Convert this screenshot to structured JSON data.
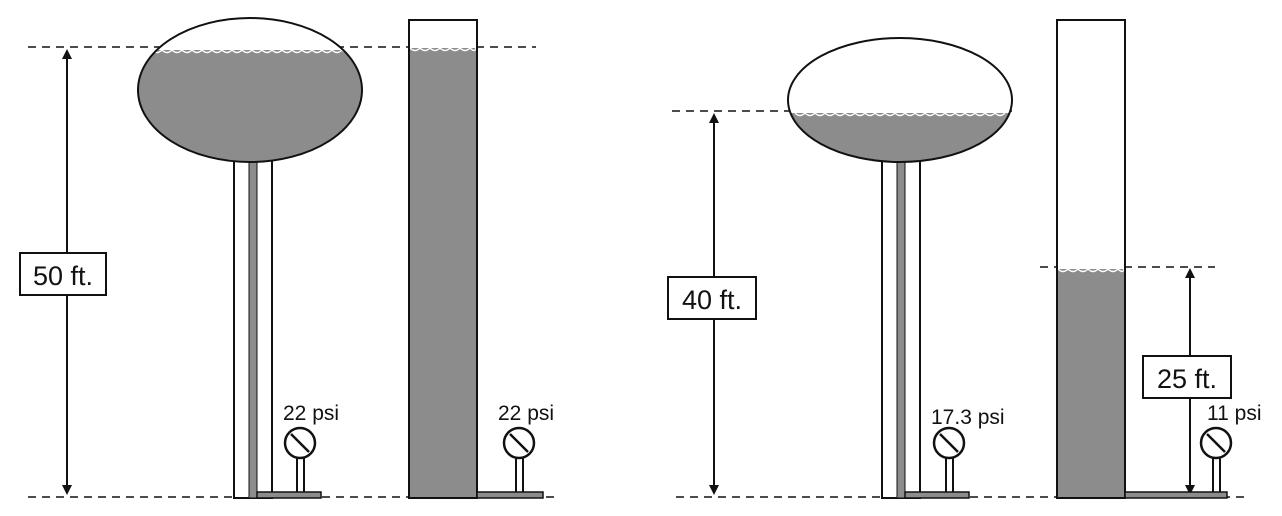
{
  "diagram": {
    "left_panel": {
      "height_label": "50 ft.",
      "tower_gauge": "22 psi",
      "standpipe_gauge": "22 psi"
    },
    "right_panel": {
      "height_label": "40 ft.",
      "tower_gauge": "17.3 psi",
      "standpipe_height_label": "25 ft.",
      "standpipe_gauge": "11 psi"
    },
    "colors": {
      "water": "#8c8c8c",
      "line": "#111111",
      "background": "#ffffff"
    }
  }
}
